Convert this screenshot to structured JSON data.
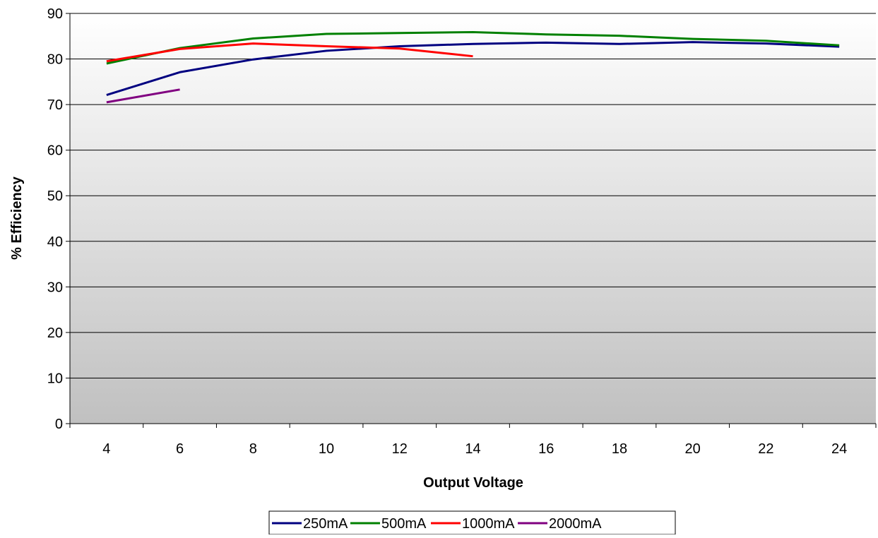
{
  "chart_data": {
    "type": "line",
    "title": "",
    "xlabel": "Output Voltage",
    "ylabel": "% Efficiency",
    "categories": [
      "4",
      "6",
      "8",
      "10",
      "12",
      "14",
      "16",
      "18",
      "20",
      "22",
      "24"
    ],
    "ylim": [
      0,
      90
    ],
    "yticks": [
      "0",
      "10",
      "20",
      "30",
      "40",
      "50",
      "60",
      "70",
      "80",
      "90"
    ],
    "grid": "horizontal",
    "legend_position": "bottom",
    "background": "vertical-gradient-white-to-gray",
    "series": [
      {
        "name": "250mA",
        "color": "#000080",
        "values": [
          72.1,
          77.1,
          79.9,
          81.8,
          82.8,
          83.3,
          83.6,
          83.3,
          83.7,
          83.4,
          82.7
        ]
      },
      {
        "name": "500mA",
        "color": "#008000",
        "values": [
          79.0,
          82.4,
          84.5,
          85.5,
          85.7,
          85.9,
          85.4,
          85.1,
          84.4,
          84.0,
          83.0
        ]
      },
      {
        "name": "1000mA",
        "color": "#ff0000",
        "values": [
          79.5,
          82.2,
          83.4,
          82.8,
          82.3,
          80.6,
          null,
          null,
          null,
          null,
          null
        ]
      },
      {
        "name": "2000mA",
        "color": "#800080",
        "values": [
          70.5,
          73.3,
          null,
          null,
          null,
          null,
          null,
          null,
          null,
          null,
          null
        ]
      }
    ]
  }
}
